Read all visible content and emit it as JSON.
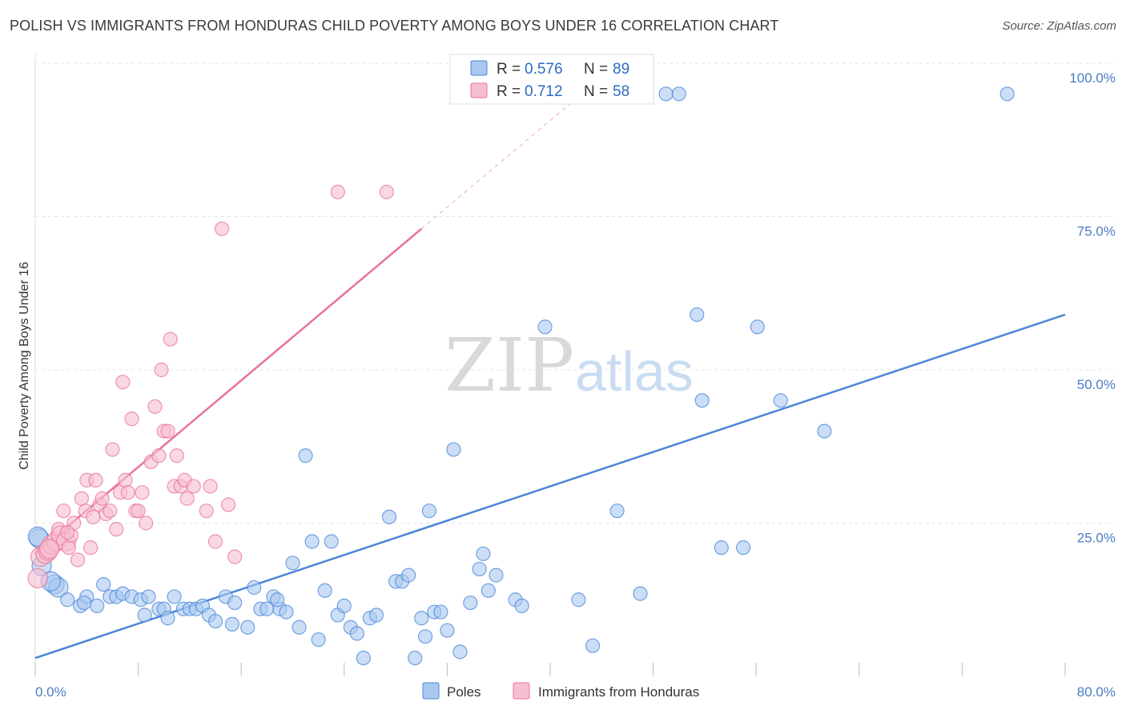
{
  "title": "POLISH VS IMMIGRANTS FROM HONDURAS CHILD POVERTY AMONG BOYS UNDER 16 CORRELATION CHART",
  "source": "Source: ZipAtlas.com",
  "watermark": {
    "zip": "ZIP",
    "atlas": "atlas"
  },
  "chart_data": {
    "type": "scatter",
    "title": "POLISH VS IMMIGRANTS FROM HONDURAS CHILD POVERTY AMONG BOYS UNDER 16 CORRELATION CHART",
    "xlabel": "",
    "ylabel": "Child Poverty Among Boys Under 16",
    "xlim": [
      0,
      80
    ],
    "ylim": [
      0,
      100
    ],
    "x_tick_labels": [
      "0.0%",
      "80.0%"
    ],
    "y_tick_labels": [
      "25.0%",
      "50.0%",
      "75.0%",
      "100.0%"
    ],
    "y_ticks": [
      25,
      50,
      75,
      100
    ],
    "grid": true,
    "legend_position": "bottom",
    "stats": [
      {
        "r_label": "R =",
        "r": "0.576",
        "n_label": "N =",
        "n": "89"
      },
      {
        "r_label": "R =",
        "r": "0.712",
        "n_label": "N =",
        "n": "58"
      }
    ],
    "series": [
      {
        "name": "Poles",
        "color": "#4a86d8",
        "fill": "#a9c8f0",
        "trend": {
          "x0": 0,
          "y0": 3,
          "x1": 80,
          "y1": 59
        },
        "points": [
          [
            0.3,
            22.5
          ],
          [
            0.5,
            18
          ],
          [
            1.5,
            15
          ],
          [
            1.8,
            14.5
          ],
          [
            2.5,
            12.5
          ],
          [
            3.5,
            11.5
          ],
          [
            4,
            13
          ],
          [
            4.8,
            11.5
          ],
          [
            5.3,
            15
          ],
          [
            5.8,
            13
          ],
          [
            6.3,
            13
          ],
          [
            6.8,
            13.5
          ],
          [
            7.5,
            13
          ],
          [
            8.2,
            12.5
          ],
          [
            8.5,
            10
          ],
          [
            8.8,
            13
          ],
          [
            9.6,
            11
          ],
          [
            10,
            11
          ],
          [
            10.3,
            9.5
          ],
          [
            10.8,
            13
          ],
          [
            11.5,
            11
          ],
          [
            12,
            11
          ],
          [
            12.5,
            11
          ],
          [
            13,
            11.5
          ],
          [
            13.5,
            10
          ],
          [
            14,
            9
          ],
          [
            14.8,
            13
          ],
          [
            15.3,
            8.5
          ],
          [
            16.5,
            8
          ],
          [
            17,
            14.5
          ],
          [
            17.5,
            11
          ],
          [
            18,
            11
          ],
          [
            18.5,
            13
          ],
          [
            19,
            11
          ],
          [
            19.5,
            10.5
          ],
          [
            20,
            18.5
          ],
          [
            20.5,
            8
          ],
          [
            21,
            36
          ],
          [
            21.5,
            22
          ],
          [
            22,
            6
          ],
          [
            22.5,
            14
          ],
          [
            23,
            22
          ],
          [
            23.5,
            10
          ],
          [
            24,
            11.5
          ],
          [
            24.5,
            8
          ],
          [
            25,
            7
          ],
          [
            25.5,
            3
          ],
          [
            26,
            9.5
          ],
          [
            26.5,
            10
          ],
          [
            27.5,
            26
          ],
          [
            28,
            15.5
          ],
          [
            28.5,
            15.5
          ],
          [
            29,
            16.5
          ],
          [
            29.5,
            3
          ],
          [
            30,
            9.5
          ],
          [
            30.3,
            6.5
          ],
          [
            30.6,
            27
          ],
          [
            31,
            10.5
          ],
          [
            31.5,
            10.5
          ],
          [
            32,
            7.5
          ],
          [
            32.5,
            37
          ],
          [
            33,
            4
          ],
          [
            33.8,
            12
          ],
          [
            34.5,
            17.5
          ],
          [
            34.8,
            20
          ],
          [
            35.2,
            14
          ],
          [
            35.8,
            16.5
          ],
          [
            37.3,
            12.5
          ],
          [
            37.8,
            11.5
          ],
          [
            39.6,
            57
          ],
          [
            42.2,
            12.5
          ],
          [
            43.3,
            5
          ],
          [
            45.2,
            27
          ],
          [
            47,
            13.5
          ],
          [
            49,
            95
          ],
          [
            50,
            95
          ],
          [
            51.4,
            59
          ],
          [
            51.8,
            45
          ],
          [
            53.3,
            21
          ],
          [
            55,
            21
          ],
          [
            56.1,
            57
          ],
          [
            57.9,
            45
          ],
          [
            61.3,
            40
          ],
          [
            75.5,
            95
          ],
          [
            0.2,
            22.8
          ],
          [
            1.2,
            15.5
          ],
          [
            3.8,
            12
          ],
          [
            15.5,
            12
          ],
          [
            18.8,
            12.5
          ]
        ]
      },
      {
        "name": "Immigrants from Honduras",
        "color": "#e8729a",
        "fill": "#f7bed0",
        "trend": {
          "x0": 0,
          "y0": 20,
          "x1": 30,
          "y1": 73
        },
        "points": [
          [
            0.2,
            16
          ],
          [
            0.4,
            19.5
          ],
          [
            0.8,
            20
          ],
          [
            1,
            20.5
          ],
          [
            1.3,
            21.5
          ],
          [
            1.6,
            22
          ],
          [
            1.8,
            24
          ],
          [
            2,
            23
          ],
          [
            2.2,
            27
          ],
          [
            2.4,
            22
          ],
          [
            2.6,
            21
          ],
          [
            2.8,
            23
          ],
          [
            3,
            25
          ],
          [
            3.3,
            19
          ],
          [
            3.6,
            29
          ],
          [
            3.9,
            27
          ],
          [
            4,
            32
          ],
          [
            4.3,
            21
          ],
          [
            4.5,
            26
          ],
          [
            4.7,
            32
          ],
          [
            5,
            28
          ],
          [
            5.2,
            29
          ],
          [
            5.5,
            26.5
          ],
          [
            5.8,
            27
          ],
          [
            6,
            37
          ],
          [
            6.3,
            24
          ],
          [
            6.6,
            30
          ],
          [
            6.8,
            48
          ],
          [
            7,
            32
          ],
          [
            7.2,
            30
          ],
          [
            7.5,
            42
          ],
          [
            7.8,
            27
          ],
          [
            8,
            27
          ],
          [
            8.3,
            30
          ],
          [
            8.6,
            25
          ],
          [
            9,
            35
          ],
          [
            9.3,
            44
          ],
          [
            9.6,
            36
          ],
          [
            9.8,
            50
          ],
          [
            10,
            40
          ],
          [
            10.3,
            40
          ],
          [
            10.5,
            55
          ],
          [
            10.8,
            31
          ],
          [
            11,
            36
          ],
          [
            11.3,
            31
          ],
          [
            11.6,
            32
          ],
          [
            11.8,
            29
          ],
          [
            12.3,
            31
          ],
          [
            13.3,
            27
          ],
          [
            13.6,
            31
          ],
          [
            14,
            22
          ],
          [
            14.5,
            73
          ],
          [
            15,
            28
          ],
          [
            15.5,
            19.5
          ],
          [
            23.5,
            79
          ],
          [
            27.3,
            79
          ],
          [
            1.1,
            20.8
          ],
          [
            2.5,
            23.5
          ]
        ]
      }
    ]
  }
}
